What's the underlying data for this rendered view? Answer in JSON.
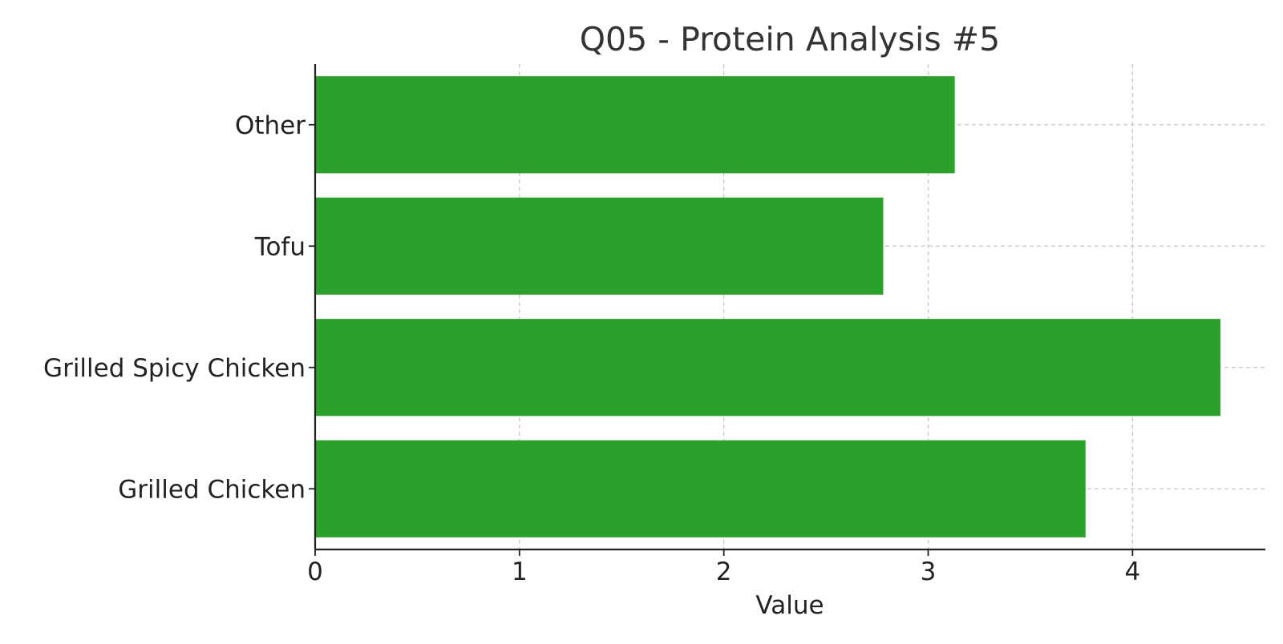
{
  "chart_data": {
    "type": "bar",
    "orientation": "horizontal",
    "title": "Q05 - Protein Analysis #5",
    "xlabel": "Value",
    "ylabel": "",
    "categories": [
      "Grilled Chicken",
      "Grilled Spicy Chicken",
      "Tofu",
      "Other"
    ],
    "values": [
      3.77,
      4.43,
      2.78,
      3.13
    ],
    "xlim": [
      0,
      4.65
    ],
    "xticks": [
      0,
      1,
      2,
      3,
      4
    ],
    "grid": true,
    "legend": "none",
    "bar_color": "#2ca02c"
  }
}
